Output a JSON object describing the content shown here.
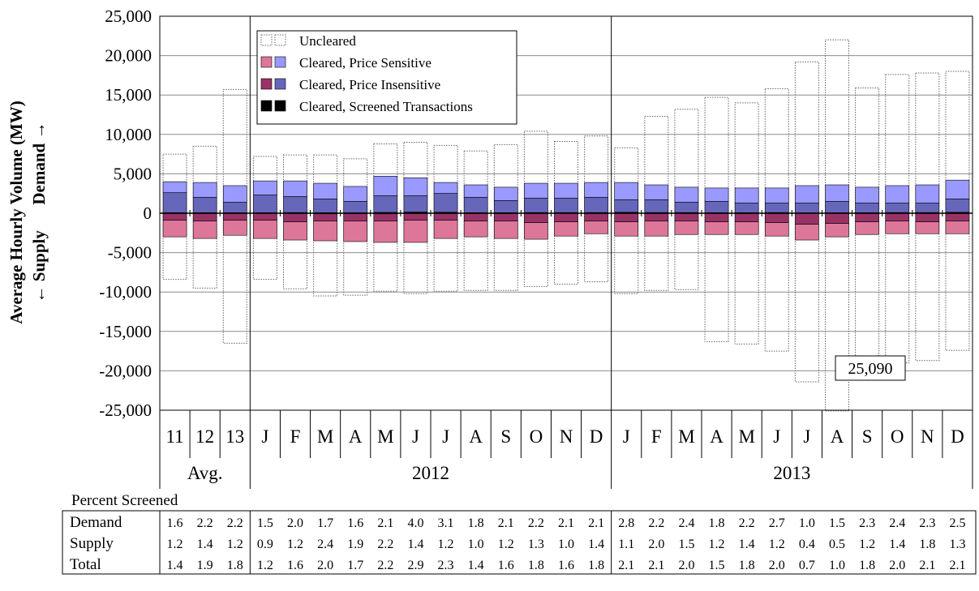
{
  "chart_data": {
    "type": "bar",
    "ylabel_line1": "Average Hourly Volume (MW)",
    "ylabel_line2": "← Supply      Demand →",
    "ylim": [
      -25000,
      25000
    ],
    "yticks": [
      "25,000",
      "20,000",
      "15,000",
      "10,000",
      "5,000",
      "0",
      "-5,000",
      "-10,000",
      "-15,000",
      "-20,000",
      "-25,000"
    ],
    "ytick_values": [
      25000,
      20000,
      15000,
      10000,
      5000,
      0,
      -5000,
      -10000,
      -15000,
      -20000,
      -25000
    ],
    "grid": true,
    "legend_position": "top-left",
    "categories": [
      "11",
      "12",
      "13",
      "J",
      "F",
      "M",
      "A",
      "M",
      "J",
      "J",
      "A",
      "S",
      "O",
      "N",
      "D",
      "J",
      "F",
      "M",
      "A",
      "M",
      "J",
      "J",
      "A",
      "S",
      "O",
      "N",
      "D"
    ],
    "groups": [
      {
        "label": "Avg.",
        "count": 3
      },
      {
        "label": "2012",
        "count": 12
      },
      {
        "label": "2013",
        "count": 12
      }
    ],
    "series": [
      {
        "name": "Uncleared",
        "demand_total": [
          7500,
          8500,
          15700,
          7200,
          7400,
          7400,
          6900,
          8800,
          9000,
          8600,
          7900,
          8700,
          10400,
          9100,
          9800,
          8300,
          12300,
          13200,
          14700,
          14000,
          15800,
          19200,
          22000,
          15900,
          17600,
          17800,
          18000
        ],
        "supply_total": [
          -8400,
          -9500,
          -16500,
          -8400,
          -9600,
          -10500,
          -10400,
          -9900,
          -10200,
          -9900,
          -9800,
          -9800,
          -9300,
          -9000,
          -8700,
          -10200,
          -9800,
          -9700,
          -16300,
          -16600,
          -17500,
          -21400,
          -25090,
          -19000,
          -19000,
          -18700,
          -17400
        ]
      },
      {
        "name": "Cleared, Price Sensitive",
        "demand_total": [
          4000,
          3900,
          3500,
          4100,
          4100,
          3800,
          3400,
          4700,
          4500,
          3900,
          3600,
          3300,
          3800,
          3800,
          3900,
          3900,
          3600,
          3300,
          3200,
          3200,
          3200,
          3500,
          3600,
          3300,
          3500,
          3600,
          4200
        ],
        "supply_total": [
          -3000,
          -3200,
          -2800,
          -3200,
          -3400,
          -3500,
          -3600,
          -3700,
          -3700,
          -3200,
          -3000,
          -3200,
          -3300,
          -2900,
          -2600,
          -2900,
          -2900,
          -2700,
          -2700,
          -2700,
          -2900,
          -3400,
          -3000,
          -2700,
          -2600,
          -2600,
          -2600
        ]
      },
      {
        "name": "Cleared, Price Insensitive",
        "demand_total": [
          2600,
          2000,
          1400,
          2300,
          2100,
          1800,
          1500,
          2200,
          2200,
          2500,
          2000,
          1600,
          1900,
          1900,
          2000,
          1700,
          1700,
          1400,
          1500,
          1300,
          1300,
          1300,
          1500,
          1300,
          1300,
          1300,
          1800
        ],
        "supply_total": [
          -900,
          -1000,
          -900,
          -900,
          -1100,
          -1000,
          -1000,
          -1000,
          -900,
          -900,
          -1000,
          -1000,
          -1200,
          -1100,
          -1000,
          -1100,
          -1000,
          -1000,
          -1100,
          -1100,
          -1200,
          -1400,
          -1300,
          -1100,
          -1000,
          -1100,
          -1000
        ]
      },
      {
        "name": "Cleared, Screened Transactions",
        "demand_total": [
          60,
          60,
          50,
          60,
          80,
          60,
          50,
          90,
          140,
          120,
          70,
          70,
          80,
          80,
          80,
          110,
          80,
          80,
          60,
          70,
          80,
          40,
          50,
          70,
          80,
          80,
          100
        ],
        "supply_total": [
          -40,
          -40,
          -40,
          -30,
          -40,
          -80,
          -70,
          -80,
          -50,
          -40,
          -30,
          -40,
          -40,
          -30,
          -40,
          -30,
          -60,
          -40,
          -30,
          -40,
          -40,
          -10,
          -20,
          -40,
          -40,
          -50,
          -40
        ]
      }
    ],
    "annotation": "25,090",
    "colors": {
      "demand_price_sensitive": "#9999FF",
      "demand_price_insensitive": "#6666BB",
      "supply_price_sensitive": "#DD7799",
      "supply_price_insensitive": "#993366",
      "screened": "#000000",
      "uncleared_border": "#666666",
      "grid": "#8C8C8C"
    }
  },
  "percent_table": {
    "title": "Percent Screened",
    "rows": [
      {
        "label": "Demand",
        "values": [
          "1.6",
          "2.2",
          "2.2",
          "1.5",
          "2.0",
          "1.7",
          "1.6",
          "2.1",
          "4.0",
          "3.1",
          "1.8",
          "2.1",
          "2.2",
          "2.1",
          "2.1",
          "2.8",
          "2.2",
          "2.4",
          "1.8",
          "2.2",
          "2.7",
          "1.0",
          "1.5",
          "2.3",
          "2.4",
          "2.3",
          "2.5"
        ]
      },
      {
        "label": "Supply",
        "values": [
          "1.2",
          "1.4",
          "1.2",
          "0.9",
          "1.2",
          "2.4",
          "1.9",
          "2.2",
          "1.4",
          "1.2",
          "1.0",
          "1.2",
          "1.3",
          "1.0",
          "1.4",
          "1.1",
          "2.0",
          "1.5",
          "1.2",
          "1.4",
          "1.2",
          "0.4",
          "0.5",
          "1.2",
          "1.4",
          "1.8",
          "1.3"
        ]
      },
      {
        "label": "Total",
        "values": [
          "1.4",
          "1.9",
          "1.8",
          "1.2",
          "1.6",
          "2.0",
          "1.7",
          "2.2",
          "2.9",
          "2.3",
          "1.4",
          "1.6",
          "1.8",
          "1.6",
          "1.8",
          "2.1",
          "2.1",
          "2.0",
          "1.5",
          "1.8",
          "2.0",
          "0.7",
          "1.0",
          "1.8",
          "2.0",
          "2.1",
          "2.1"
        ]
      }
    ]
  }
}
